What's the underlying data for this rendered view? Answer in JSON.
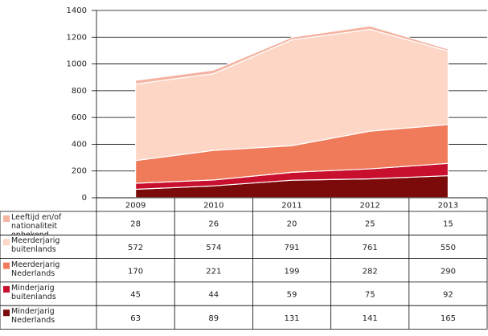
{
  "chart_data": {
    "type": "area",
    "stacked": true,
    "categories": [
      "2009",
      "2010",
      "2011",
      "2012",
      "2013"
    ],
    "series": [
      {
        "name": "Minderjarig Nederlands",
        "color": "#7b0a0a",
        "values": [
          63,
          89,
          131,
          141,
          165
        ]
      },
      {
        "name": "Minderjarig buitenlands",
        "color": "#c8102e",
        "values": [
          45,
          44,
          59,
          75,
          92
        ]
      },
      {
        "name": "Meerderjarig Nederlands",
        "color": "#f07b5b",
        "values": [
          170,
          221,
          199,
          282,
          290
        ]
      },
      {
        "name": "Meerderjarig buitenlands",
        "color": "#fdd6c6",
        "values": [
          572,
          574,
          791,
          761,
          550
        ]
      },
      {
        "name": "Leeftijd en/of nationaliteit onbekend",
        "color": "#f5b3a1",
        "values": [
          28,
          26,
          20,
          25,
          15
        ]
      }
    ],
    "ylim": [
      0,
      1400
    ],
    "yticks": [
      0,
      200,
      400,
      600,
      800,
      1000,
      1200,
      1400
    ],
    "grid": true
  }
}
